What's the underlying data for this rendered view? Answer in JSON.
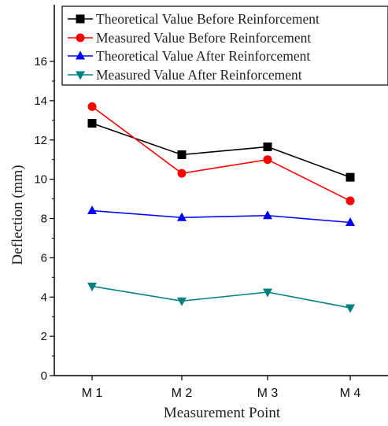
{
  "chart_data": {
    "type": "line",
    "title": "",
    "xlabel": "Measurement Point",
    "ylabel": "Deflection (mm)",
    "categories": [
      "M1",
      "M2",
      "M3",
      "M4"
    ],
    "category_labels": [
      "M 1",
      "M 2",
      "M 3",
      "M 4"
    ],
    "ylim": [
      0,
      16
    ],
    "yticks": [
      0,
      2,
      4,
      6,
      8,
      10,
      12,
      14,
      16
    ],
    "grid": false,
    "legend_position": "top",
    "series": [
      {
        "name": "Theoretical Value Before Reinforcement",
        "color": "#000000",
        "marker": "square",
        "values": [
          12.85,
          11.25,
          11.65,
          10.1
        ]
      },
      {
        "name": "Measured Value Before Reinforcement",
        "color": "#ff0000",
        "marker": "circle",
        "values": [
          13.7,
          10.3,
          11.0,
          8.9
        ]
      },
      {
        "name": "Theoretical Value After Reinforcement",
        "color": "#0000ff",
        "marker": "triangle-up",
        "values": [
          8.4,
          8.05,
          8.15,
          7.8
        ]
      },
      {
        "name": "Measured Value After Reinforcement",
        "color": "#008080",
        "marker": "triangle-down",
        "values": [
          4.55,
          3.8,
          4.25,
          3.45
        ]
      }
    ]
  }
}
